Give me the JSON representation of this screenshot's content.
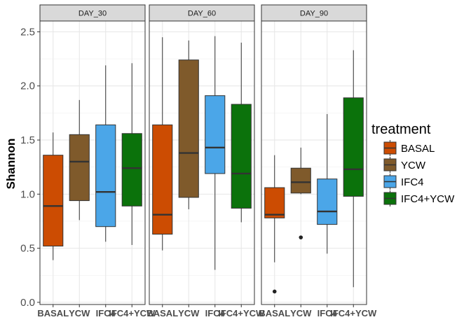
{
  "chart_data": {
    "type": "boxplot",
    "ylabel": "Shannon",
    "ylim": [
      -0.02,
      2.6
    ],
    "yticks": [
      "0.0",
      "0.5",
      "1.0",
      "1.5",
      "2.0",
      "2.5"
    ],
    "categories": [
      "BASAL",
      "YCW",
      "IFC4",
      "IFC4+YCW"
    ],
    "legend": {
      "title": "treatment",
      "placement": "right",
      "items": [
        {
          "label": "BASAL",
          "color": "#CC4C02"
        },
        {
          "label": "YCW",
          "color": "#7F5A2B"
        },
        {
          "label": "IFC4",
          "color": "#4BA6E8"
        },
        {
          "label": "IFC4+YCW",
          "color": "#0B720B"
        }
      ]
    },
    "grid": true,
    "panels": [
      {
        "label": "DAY_30",
        "boxes": [
          {
            "category": "BASAL",
            "min": 0.39,
            "q1": 0.52,
            "median": 0.89,
            "q3": 1.36,
            "max": 1.57,
            "outliers": []
          },
          {
            "category": "YCW",
            "min": 0.76,
            "q1": 0.94,
            "median": 1.3,
            "q3": 1.55,
            "max": 1.87,
            "outliers": []
          },
          {
            "category": "IFC4",
            "min": 0.56,
            "q1": 0.7,
            "median": 1.02,
            "q3": 1.64,
            "max": 2.19,
            "outliers": []
          },
          {
            "category": "IFC4+YCW",
            "min": 0.53,
            "q1": 0.89,
            "median": 1.24,
            "q3": 1.56,
            "max": 2.21,
            "outliers": []
          }
        ]
      },
      {
        "label": "DAY_60",
        "boxes": [
          {
            "category": "BASAL",
            "min": 0.48,
            "q1": 0.63,
            "median": 0.81,
            "q3": 1.64,
            "max": 2.45,
            "outliers": []
          },
          {
            "category": "YCW",
            "min": 0.86,
            "q1": 0.97,
            "median": 1.38,
            "q3": 2.24,
            "max": 2.42,
            "outliers": []
          },
          {
            "category": "IFC4",
            "min": 0.3,
            "q1": 1.19,
            "median": 1.43,
            "q3": 1.91,
            "max": 2.46,
            "outliers": []
          },
          {
            "category": "IFC4+YCW",
            "min": 0.74,
            "q1": 0.87,
            "median": 1.19,
            "q3": 1.83,
            "max": 2.4,
            "outliers": []
          }
        ]
      },
      {
        "label": "DAY_90",
        "boxes": [
          {
            "category": "BASAL",
            "min": 0.37,
            "q1": 0.78,
            "median": 0.81,
            "q3": 1.06,
            "max": 1.36,
            "outliers": [
              0.1
            ]
          },
          {
            "category": "YCW",
            "min": 1.0,
            "q1": 1.01,
            "median": 1.11,
            "q3": 1.24,
            "max": 1.43,
            "outliers": [
              0.6
            ]
          },
          {
            "category": "IFC4",
            "min": 0.45,
            "q1": 0.72,
            "median": 0.84,
            "q3": 1.14,
            "max": 1.74,
            "outliers": []
          },
          {
            "category": "IFC4+YCW",
            "min": 0.14,
            "q1": 0.98,
            "median": 1.23,
            "q3": 1.89,
            "max": 2.33,
            "outliers": []
          }
        ]
      }
    ]
  }
}
